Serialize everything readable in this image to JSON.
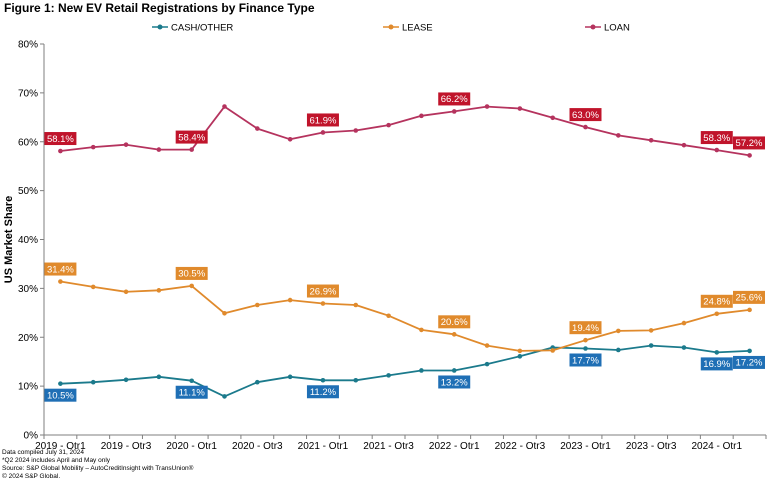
{
  "chart_data": {
    "type": "line",
    "title": "Figure 1: New EV Retail Registrations by Finance Type",
    "ylabel": "US Market Share",
    "xlabel": "",
    "ylim": [
      0,
      80
    ],
    "yticks": [
      "0%",
      "10%",
      "20%",
      "30%",
      "40%",
      "50%",
      "60%",
      "70%",
      "80%"
    ],
    "grid": false,
    "legend_position": "top",
    "categories": [
      "2019 - Qtr1",
      "2019 - Qtr2",
      "2019 - Qtr3",
      "2019 - Qtr4",
      "2020 - Qtr1",
      "2020 - Qtr2",
      "2020 - Qtr3",
      "2020 - Qtr4",
      "2021 - Qtr1",
      "2021 - Qtr2",
      "2021 - Qtr3",
      "2021 - Qtr4",
      "2022 - Qtr1",
      "2022 - Qtr2",
      "2022 - Qtr3",
      "2022 - Qtr4",
      "2023 - Qtr1",
      "2023 - Qtr2",
      "2023 - Qtr3",
      "2023 - Qtr4",
      "2024 - Qtr1",
      "2024 - Qtr2"
    ],
    "xtick_labels": [
      "2019 - Qtr1",
      "2019 - Qtr3",
      "2020 - Qtr1",
      "2020 - Qtr3",
      "2021 - Qtr1",
      "2021 - Qtr3",
      "2022 - Qtr1",
      "2022 - Qtr3",
      "2023 - Qtr1",
      "2023 - Qtr3",
      "2024 - Qtr1"
    ],
    "series": [
      {
        "name": "CASH/OTHER",
        "color": "#1b7a8c",
        "label_color": "#1f6fb5",
        "values": [
          10.5,
          10.8,
          11.3,
          11.9,
          11.1,
          7.9,
          10.8,
          11.9,
          11.2,
          11.2,
          12.2,
          13.2,
          13.2,
          14.5,
          16.1,
          17.9,
          17.7,
          17.4,
          18.3,
          17.9,
          16.9,
          17.2
        ],
        "labels": [
          {
            "index": 0,
            "text": "10.5%",
            "side": "below"
          },
          {
            "index": 4,
            "text": "11.1%",
            "side": "below"
          },
          {
            "index": 8,
            "text": "11.2%",
            "side": "below"
          },
          {
            "index": 12,
            "text": "13.2%",
            "side": "below"
          },
          {
            "index": 16,
            "text": "17.7%",
            "side": "below"
          },
          {
            "index": 20,
            "text": "16.9%",
            "side": "below"
          },
          {
            "index": 21,
            "text": "17.2%",
            "side": "below"
          }
        ]
      },
      {
        "name": "LEASE",
        "color": "#e08a2c",
        "label_color": "#e08a2c",
        "values": [
          31.4,
          30.3,
          29.3,
          29.6,
          30.5,
          24.9,
          26.6,
          27.6,
          26.9,
          26.6,
          24.4,
          21.5,
          20.6,
          18.3,
          17.2,
          17.3,
          19.4,
          21.3,
          21.4,
          22.9,
          24.8,
          25.6
        ],
        "labels": [
          {
            "index": 0,
            "text": "31.4%",
            "side": "above"
          },
          {
            "index": 4,
            "text": "30.5%",
            "side": "above"
          },
          {
            "index": 8,
            "text": "26.9%",
            "side": "above"
          },
          {
            "index": 12,
            "text": "20.6%",
            "side": "above"
          },
          {
            "index": 16,
            "text": "19.4%",
            "side": "above"
          },
          {
            "index": 20,
            "text": "24.8%",
            "side": "above"
          },
          {
            "index": 21,
            "text": "25.6%",
            "side": "above"
          }
        ]
      },
      {
        "name": "LOAN",
        "color": "#b5335e",
        "label_color": "#c0142b",
        "values": [
          58.1,
          58.9,
          59.4,
          58.4,
          58.4,
          67.2,
          62.7,
          60.5,
          61.9,
          62.3,
          63.4,
          65.3,
          66.2,
          67.2,
          66.8,
          64.9,
          63.0,
          61.3,
          60.3,
          59.3,
          58.3,
          57.2
        ],
        "labels": [
          {
            "index": 0,
            "text": "58.1%",
            "side": "above"
          },
          {
            "index": 4,
            "text": "58.4%",
            "side": "above"
          },
          {
            "index": 8,
            "text": "61.9%",
            "side": "above"
          },
          {
            "index": 12,
            "text": "66.2%",
            "side": "above"
          },
          {
            "index": 16,
            "text": "63.0%",
            "side": "above"
          },
          {
            "index": 20,
            "text": "58.3%",
            "side": "above"
          },
          {
            "index": 21,
            "text": "57.2%",
            "side": "above"
          }
        ]
      }
    ]
  },
  "footer": {
    "line1": "Data compiled July 31, 2024",
    "line2": "*Q2 2024 includes April and May only",
    "line3": "Source: S&P Global Mobility – AutoCreditInsight with TransUnion®",
    "line4": "© 2024 S&P Global."
  }
}
